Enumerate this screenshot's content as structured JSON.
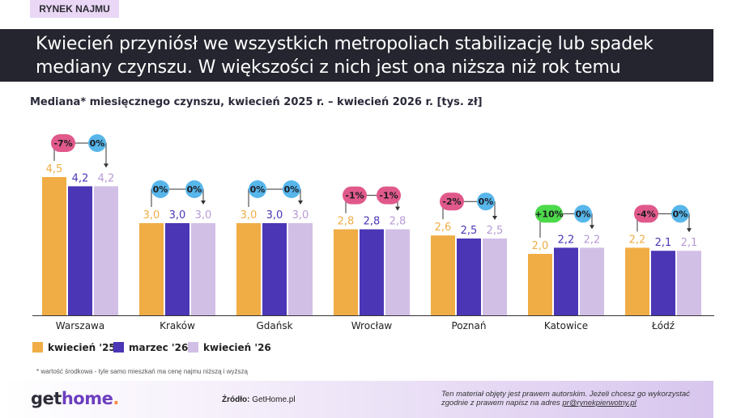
{
  "tag": "RYNEK NAJMU",
  "headline": "Kwiecień przyniósł we wszystkich metropoliach stabilizację lub spadek mediany czynszu. W większości z nich jest ona niższa niż rok temu",
  "footnote": "* wartość środkowa  - tyle samo mieszkań ma cenę najmu niższą i wyższą",
  "footer": {
    "logo_a": "get",
    "logo_b": "home",
    "logo_dot": ".",
    "source_label": "Źródło:",
    "source_value": "GetHome.pl",
    "copyright_line1": "Ten materiał objęty jest prawem autorskim. Jeżeli chcesz go wykorzystać",
    "copyright_line2": "zgodnie z prawem napisz na adres ",
    "copyright_email": "pr@rynekpierwotny.pl"
  },
  "colors": {
    "kwiecien25": "#f0ad45",
    "marzec26": "#4b36b6",
    "kwiecien26": "#d2bfe6",
    "badge_negative": "#e0598a",
    "badge_zero": "#57b6ea",
    "badge_positive": "#4cd94a"
  },
  "chart_data": {
    "type": "bar",
    "title": "Mediana* miesięcznego czynszu, kwiecień 2025 r. – kwiecień 2026 r. [tys. zł]",
    "ylim": [
      0,
      5
    ],
    "categories": [
      "Warszawa",
      "Kraków",
      "Gdańsk",
      "Wrocław",
      "Poznań",
      "Katowice",
      "Łódź"
    ],
    "series": [
      {
        "name": "kwiecień '25",
        "values": [
          4.5,
          3.0,
          3.0,
          2.8,
          2.6,
          2.0,
          2.2
        ],
        "labels": [
          "4,5",
          "3,0",
          "3,0",
          "2,8",
          "2,6",
          "2,0",
          "2,2"
        ]
      },
      {
        "name": "marzec '26",
        "values": [
          4.2,
          3.0,
          3.0,
          2.8,
          2.5,
          2.2,
          2.1
        ],
        "labels": [
          "4,2",
          "3,0",
          "3,0",
          "2,8",
          "2,5",
          "2,2",
          "2,1"
        ]
      },
      {
        "name": "kwiecień '26",
        "values": [
          4.2,
          3.0,
          3.0,
          2.8,
          2.5,
          2.2,
          2.1
        ],
        "labels": [
          "4,2",
          "3,0",
          "3,0",
          "2,8",
          "2,5",
          "2,2",
          "2,1"
        ]
      }
    ],
    "changes_yoy": [
      "-7%",
      "0%",
      "0%",
      "-1%",
      "-2%",
      "+10%",
      "-4%"
    ],
    "changes_mom": [
      "0%",
      "0%",
      "0%",
      "-1%",
      "0%",
      "0%",
      "0%"
    ],
    "legend_position": "bottom-left",
    "grid": false
  }
}
